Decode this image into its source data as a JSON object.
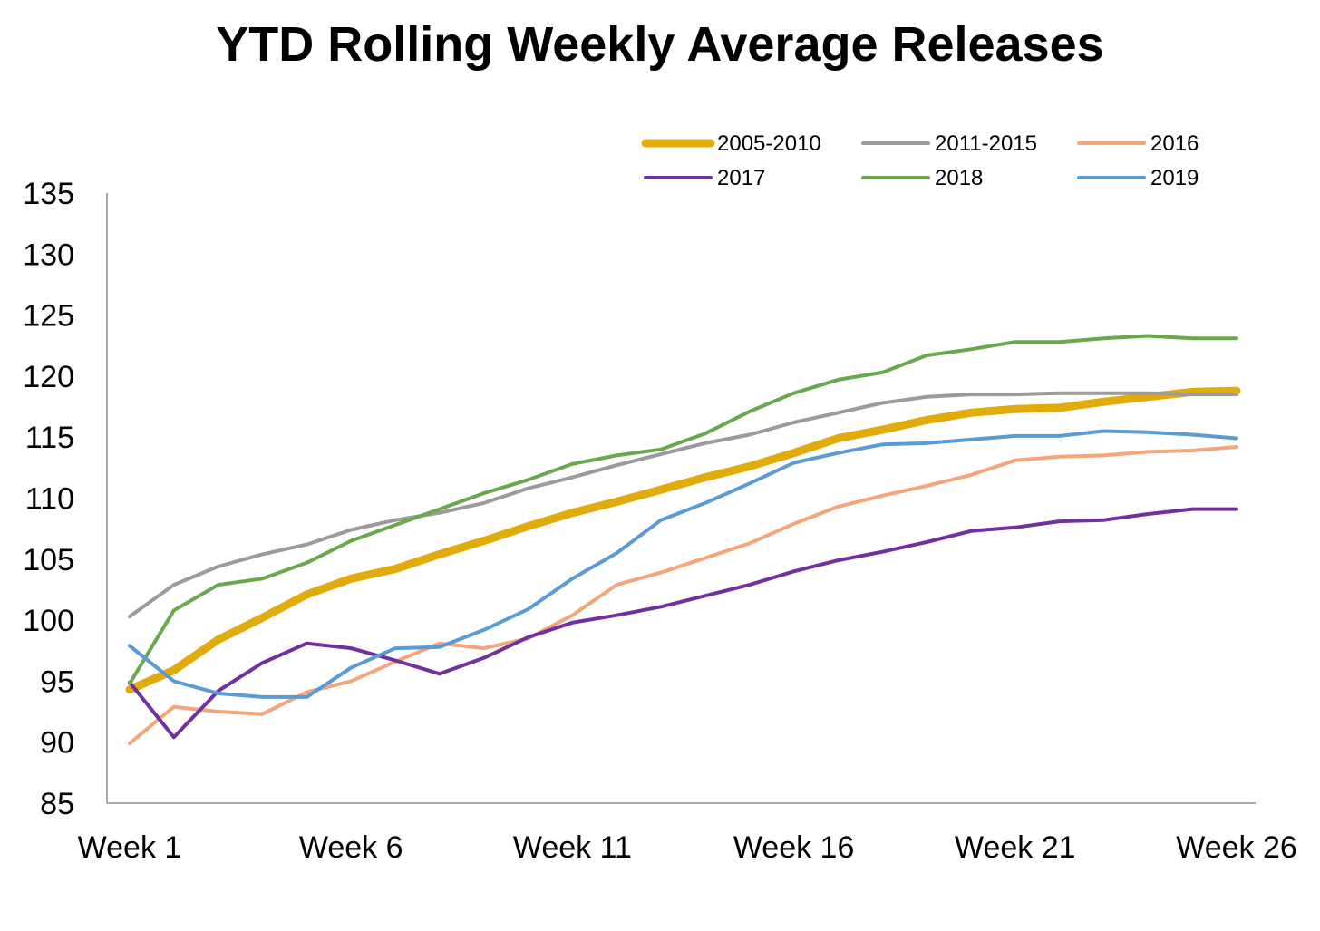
{
  "chart_data": {
    "type": "line",
    "title": "YTD Rolling Weekly Average Releases",
    "xlabel": "",
    "ylabel": "",
    "ylim": [
      85,
      135
    ],
    "yticks": [
      85,
      90,
      95,
      100,
      105,
      110,
      115,
      120,
      125,
      130,
      135
    ],
    "x": [
      "Week 1",
      "Week 2",
      "Week 3",
      "Week 4",
      "Week 5",
      "Week 6",
      "Week 7",
      "Week 8",
      "Week 9",
      "Week 10",
      "Week 11",
      "Week 12",
      "Week 13",
      "Week 14",
      "Week 15",
      "Week 16",
      "Week 17",
      "Week 18",
      "Week 19",
      "Week 20",
      "Week 21",
      "Week 22",
      "Week 23",
      "Week 24",
      "Week 25",
      "Week 26"
    ],
    "xtick_labels": [
      "Week 1",
      "Week 6",
      "Week 11",
      "Week 16",
      "Week 21",
      "Week 26"
    ],
    "grid": false,
    "legend_position": "top-right",
    "series": [
      {
        "name": "2005-2010",
        "color": "#E1AB0B",
        "emphasis": "thick",
        "values": [
          94.3,
          95.9,
          98.4,
          100.2,
          102.1,
          103.4,
          104.2,
          105.4,
          106.5,
          107.7,
          108.8,
          109.7,
          110.7,
          111.7,
          112.6,
          113.7,
          114.9,
          115.6,
          116.4,
          117.0,
          117.3,
          117.4,
          117.9,
          118.3,
          118.7,
          118.8
        ]
      },
      {
        "name": "2011-2015",
        "color": "#9B9B9B",
        "values": [
          100.3,
          102.9,
          104.4,
          105.4,
          106.2,
          107.4,
          108.2,
          108.8,
          109.6,
          110.8,
          111.7,
          112.7,
          113.6,
          114.5,
          115.2,
          116.2,
          117.0,
          117.8,
          118.3,
          118.5,
          118.5,
          118.6,
          118.6,
          118.6,
          118.5,
          118.5
        ]
      },
      {
        "name": "2016",
        "color": "#F4A57B",
        "values": [
          89.9,
          92.9,
          92.5,
          92.3,
          94.1,
          95.0,
          96.6,
          98.1,
          97.7,
          98.5,
          100.4,
          102.9,
          103.9,
          105.1,
          106.3,
          107.9,
          109.3,
          110.2,
          111.0,
          111.9,
          113.1,
          113.4,
          113.5,
          113.8,
          113.9,
          114.2
        ]
      },
      {
        "name": "2017",
        "color": "#7030A0",
        "values": [
          94.9,
          90.4,
          94.2,
          96.5,
          98.1,
          97.7,
          96.7,
          95.6,
          96.9,
          98.6,
          99.8,
          100.4,
          101.1,
          102.0,
          102.9,
          104.0,
          104.9,
          105.6,
          106.4,
          107.3,
          107.6,
          108.1,
          108.2,
          108.7,
          109.1,
          109.1
        ]
      },
      {
        "name": "2018",
        "color": "#6AA84F",
        "values": [
          94.8,
          100.8,
          102.9,
          103.4,
          104.7,
          106.5,
          107.8,
          109.1,
          110.4,
          111.5,
          112.8,
          113.5,
          114.0,
          115.3,
          117.1,
          118.6,
          119.7,
          120.3,
          121.7,
          122.2,
          122.8,
          122.8,
          123.1,
          123.3,
          123.1,
          123.1
        ]
      },
      {
        "name": "2019",
        "color": "#5B9BD5",
        "values": [
          97.9,
          95.0,
          94.0,
          93.7,
          93.7,
          96.1,
          97.7,
          97.8,
          99.2,
          100.9,
          103.4,
          105.5,
          108.2,
          109.6,
          111.2,
          112.9,
          113.7,
          114.4,
          114.5,
          114.8,
          115.1,
          115.1,
          115.5,
          115.4,
          115.2,
          114.9
        ]
      }
    ]
  }
}
